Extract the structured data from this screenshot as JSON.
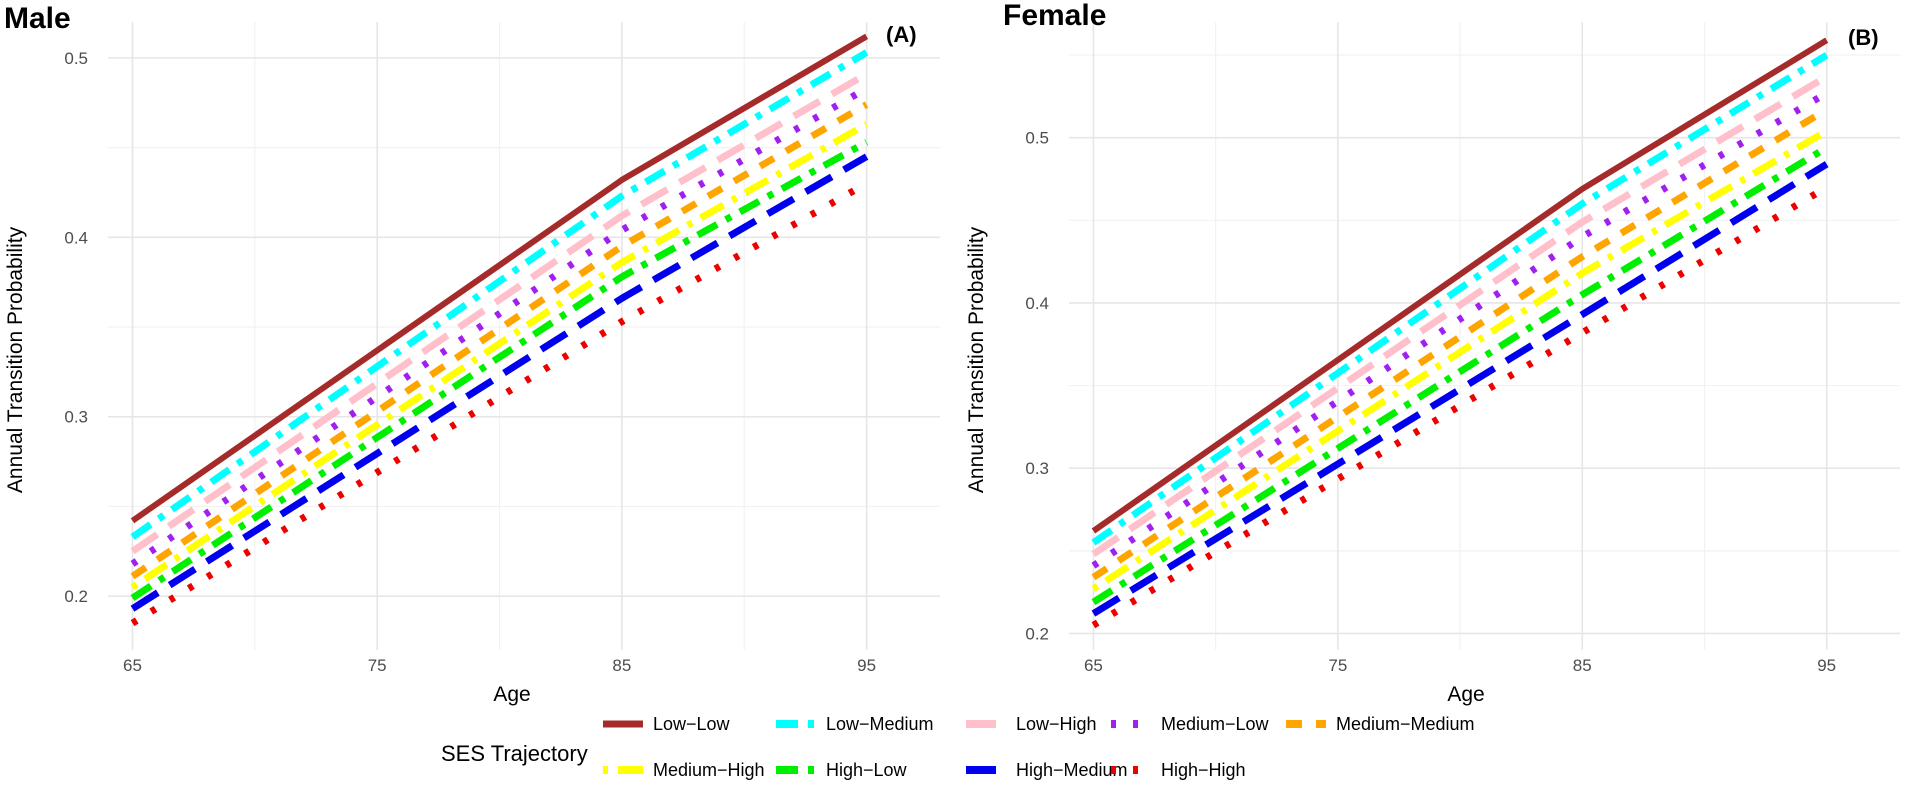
{
  "colors": {
    "grid_major": "#e6e6e6",
    "grid_minor": "#f2f2f2",
    "tick_text": "#4d4d4d"
  },
  "legend": {
    "title": "SES Trajectory"
  },
  "series_styles": [
    {
      "name": "Low−Low",
      "color": "#a52a2a",
      "dash": "solid"
    },
    {
      "name": "Low−Medium",
      "color": "#00ffff",
      "dash": "dash-dot"
    },
    {
      "name": "Low−High",
      "color": "#ffc0cb",
      "dash": "long-dash"
    },
    {
      "name": "Medium−Low",
      "color": "#a020f0",
      "dash": "dotted"
    },
    {
      "name": "Medium−Medium",
      "color": "#ffa500",
      "dash": "dashed"
    },
    {
      "name": "Medium−High",
      "color": "#ffff00",
      "dash": "dot-long-dash"
    },
    {
      "name": "High−Low",
      "color": "#00ee00",
      "dash": "dash-dot"
    },
    {
      "name": "High−Medium",
      "color": "#0000ee",
      "dash": "long-dash"
    },
    {
      "name": "High−High",
      "color": "#ee0000",
      "dash": "dotted"
    }
  ],
  "chart_data": [
    {
      "type": "line",
      "title": "Male",
      "panel_label": "(A)",
      "xlabel": "Age",
      "ylabel": "Annual Transition Probability",
      "xlim": [
        64,
        98
      ],
      "ylim": [
        0.17,
        0.52
      ],
      "xticks": [
        65,
        75,
        85,
        95
      ],
      "yticks": [
        0.2,
        0.3,
        0.4,
        0.5
      ],
      "x": [
        65,
        85,
        95
      ],
      "series": [
        {
          "name": "Low−Low",
          "values": [
            0.242,
            0.432,
            0.512
          ]
        },
        {
          "name": "Low−Medium",
          "values": [
            0.233,
            0.423,
            0.503
          ]
        },
        {
          "name": "Low−High",
          "values": [
            0.225,
            0.412,
            0.491
          ]
        },
        {
          "name": "Medium−Low",
          "values": [
            0.218,
            0.404,
            0.483
          ]
        },
        {
          "name": "Medium−Medium",
          "values": [
            0.211,
            0.395,
            0.474
          ]
        },
        {
          "name": "Medium−High",
          "values": [
            0.205,
            0.386,
            0.463
          ]
        },
        {
          "name": "High−Low",
          "values": [
            0.199,
            0.378,
            0.453
          ]
        },
        {
          "name": "High−Medium",
          "values": [
            0.193,
            0.366,
            0.445
          ]
        },
        {
          "name": "High−High",
          "values": [
            0.185,
            0.353,
            0.43
          ]
        }
      ]
    },
    {
      "type": "line",
      "title": "Female",
      "panel_label": "(B)",
      "xlabel": "Age",
      "ylabel": "Annual Transition Probability",
      "xlim": [
        64,
        98
      ],
      "ylim": [
        0.19,
        0.57
      ],
      "xticks": [
        65,
        75,
        85,
        95
      ],
      "yticks": [
        0.2,
        0.3,
        0.4,
        0.5
      ],
      "x": [
        65,
        85,
        95
      ],
      "series": [
        {
          "name": "Low−Low",
          "values": [
            0.262,
            0.469,
            0.559
          ]
        },
        {
          "name": "Low−Medium",
          "values": [
            0.255,
            0.46,
            0.55
          ]
        },
        {
          "name": "Low−High",
          "values": [
            0.248,
            0.449,
            0.537
          ]
        },
        {
          "name": "Medium−Low",
          "values": [
            0.241,
            0.44,
            0.527
          ]
        },
        {
          "name": "Medium−Medium",
          "values": [
            0.234,
            0.428,
            0.517
          ]
        },
        {
          "name": "Medium−High",
          "values": [
            0.227,
            0.418,
            0.504
          ]
        },
        {
          "name": "High−Low",
          "values": [
            0.219,
            0.405,
            0.494
          ]
        },
        {
          "name": "High−Medium",
          "values": [
            0.212,
            0.393,
            0.484
          ]
        },
        {
          "name": "High−High",
          "values": [
            0.205,
            0.382,
            0.47
          ]
        }
      ]
    }
  ]
}
